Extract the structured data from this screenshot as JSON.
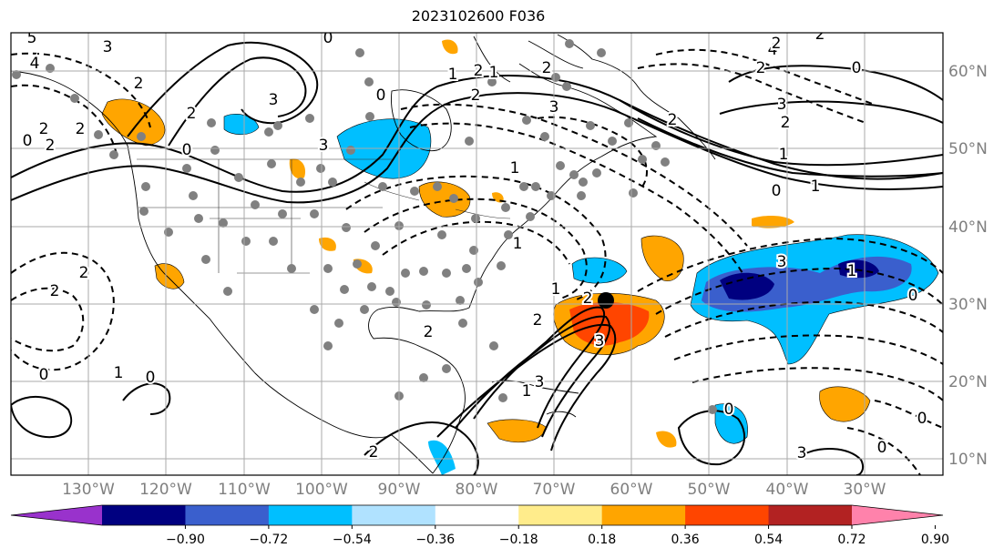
{
  "title": "2023102600 F036",
  "longitude_labels": [
    "130°W",
    "120°W",
    "110°W",
    "100°W",
    "90°W",
    "80°W",
    "70°W",
    "60°W",
    "50°W",
    "40°W",
    "30°W"
  ],
  "latitude_labels": [
    "60°N",
    "50°N",
    "40°N",
    "30°N",
    "20°N",
    "10°N"
  ],
  "colorbar": {
    "colors": [
      "#9932cc",
      "#000080",
      "#3a5fcd",
      "#00bfff",
      "#b0e2ff",
      "#ffffff",
      "#ffec8b",
      "#ffa500",
      "#ff4500",
      "#b22222",
      "#ff82ab"
    ],
    "tick_labels": [
      "−0.90",
      "−0.72",
      "−0.54",
      "−0.36",
      "−0.18",
      "0.18",
      "0.36",
      "0.54",
      "0.72",
      "0.90"
    ]
  },
  "contour_labels": [
    "5",
    "4",
    "3",
    "2",
    "2",
    "1",
    "0",
    "2",
    "2",
    "3",
    "3",
    "3",
    "0",
    "2",
    "1",
    "1",
    "2",
    "2",
    "3",
    "2",
    "3",
    "2",
    "0",
    "1",
    "0",
    "3",
    "4",
    "2",
    "3",
    "1",
    "2",
    "1",
    "0",
    "2",
    "2",
    "2",
    "1",
    "2",
    "1",
    "2",
    "2",
    "1",
    "2",
    "0",
    "0",
    "3",
    "0",
    "0",
    "1",
    "0",
    "0",
    "2",
    "0"
  ],
  "colors": {
    "land_line": "#000000",
    "grid": "#aaaaaa",
    "dots": "#808080",
    "label": "#7f7f7f"
  }
}
